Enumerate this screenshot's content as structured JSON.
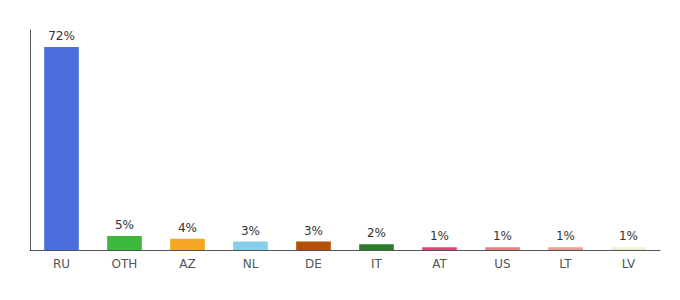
{
  "chart_data": {
    "type": "bar",
    "categories": [
      "RU",
      "OTH",
      "AZ",
      "NL",
      "DE",
      "IT",
      "AT",
      "US",
      "LT",
      "LV"
    ],
    "values": [
      72,
      5,
      4,
      3,
      3,
      2,
      1,
      1,
      1,
      1
    ],
    "value_labels": [
      "72%",
      "5%",
      "4%",
      "3%",
      "3%",
      "2%",
      "1%",
      "1%",
      "1%",
      "1%"
    ],
    "colors": [
      "#4a6fdc",
      "#3db83d",
      "#f5a623",
      "#87ceeb",
      "#b5500a",
      "#2a7a2a",
      "#e8427c",
      "#e88080",
      "#e8a090",
      "#f0f0d0"
    ],
    "ylim": [
      0,
      78
    ],
    "yticks": [],
    "grid": false,
    "data_labels": true,
    "tick_labels": "x"
  }
}
